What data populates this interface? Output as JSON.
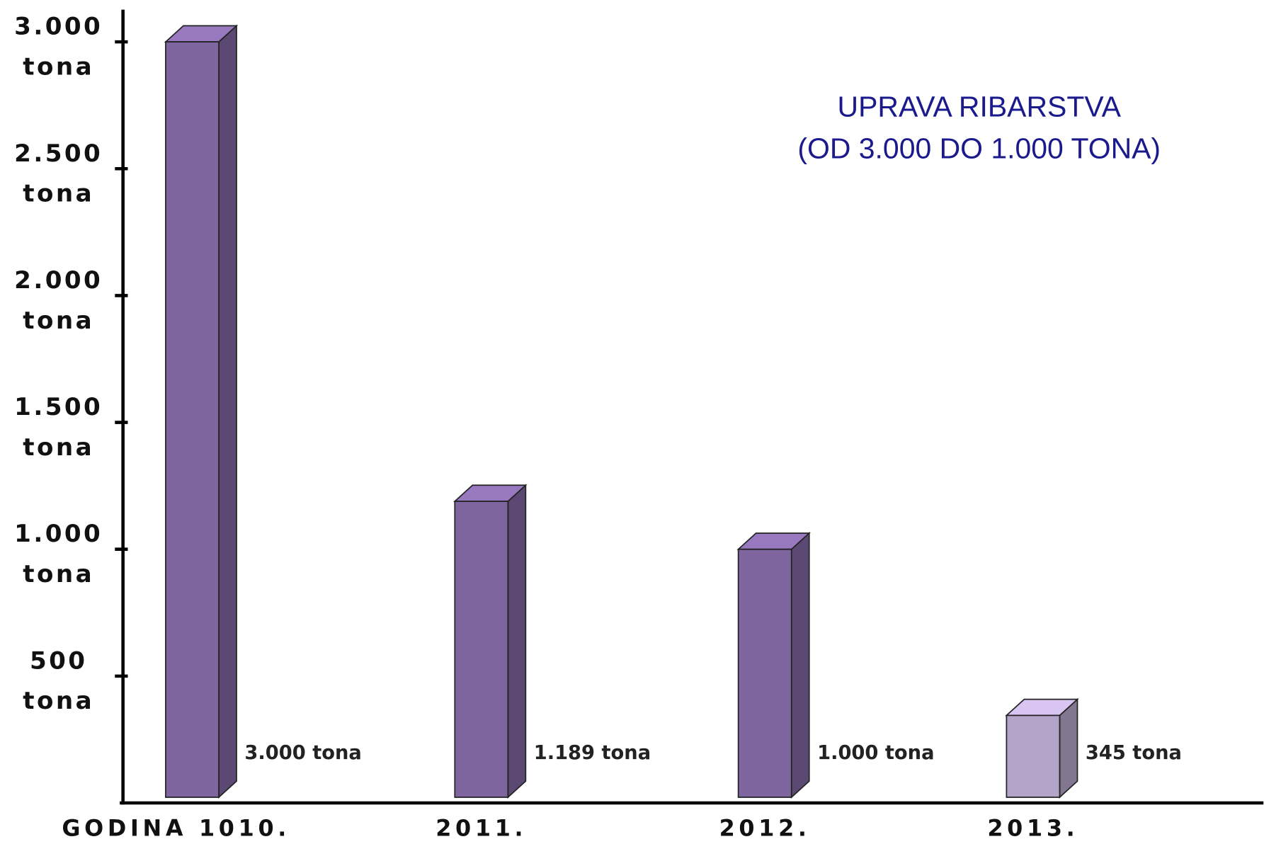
{
  "chart_data": {
    "type": "bar3d",
    "title": "UPRAVA RIBARSTVA",
    "subtitle": "(OD 3.000 DO 1.000 TONA)",
    "categories": [
      "GODINA 1010.",
      "2011.",
      "2012.",
      "2013."
    ],
    "values": [
      3000,
      1189,
      1000,
      345
    ],
    "value_labels": [
      "3.000 tona",
      "1.189 tona",
      "1.000 tona",
      "345 tona"
    ],
    "colors": [
      "#7f65a0",
      "#7f65a0",
      "#7f65a0",
      "#b4a4ca"
    ],
    "ylim": [
      0,
      3000
    ],
    "yticks": [
      {
        "value": 500,
        "label": "500 tona"
      },
      {
        "value": 1000,
        "label": "1.000 tona"
      },
      {
        "value": 1500,
        "label": "1.500 tona"
      },
      {
        "value": 2000,
        "label": "2.000 tona"
      },
      {
        "value": 2500,
        "label": "2.500 tona"
      },
      {
        "value": 3000,
        "label": "3.000 tona"
      }
    ]
  }
}
